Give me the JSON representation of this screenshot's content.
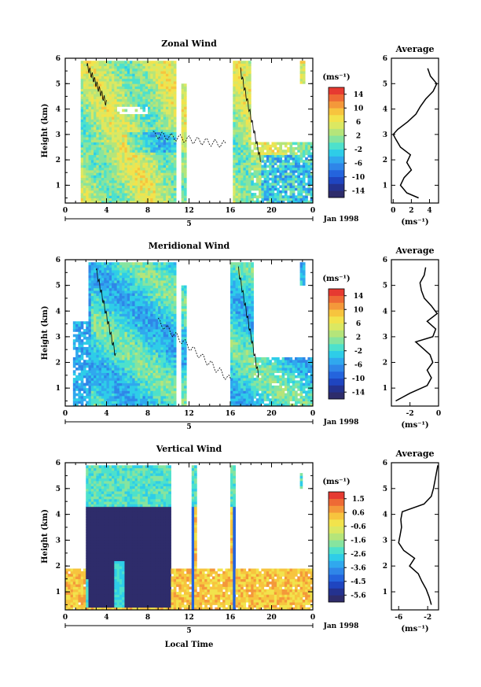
{
  "figure": {
    "xlabel": "Local Time",
    "date_label": "Jan 1998",
    "avg_title": "Average",
    "unit_label": "(ms⁻¹)",
    "avg_xlabel": "(ms⁻¹)"
  },
  "chart_data": [
    {
      "type": "heatmap",
      "title": "Zonal Wind",
      "ylabel": "Height (km)",
      "xticks": [
        "0",
        "4",
        "8",
        "12",
        "16",
        "20",
        "0"
      ],
      "day_label": "5",
      "yticks": [
        "1",
        "2",
        "3",
        "4",
        "5",
        "6"
      ],
      "ylim": [
        0.3,
        6
      ],
      "xlim": [
        0,
        24
      ],
      "colorbar": {
        "unit": "(ms⁻¹)",
        "ticks": [
          "14",
          "10",
          "6",
          "2",
          "-2",
          "-6",
          "-10",
          "-14"
        ],
        "range": [
          -16,
          16
        ]
      },
      "base_value": 2,
      "data_periods": [
        [
          1.5,
          10.8
        ],
        [
          11.3,
          11.8
        ],
        [
          16.2,
          18.0
        ],
        [
          18.0,
          24.0
        ]
      ],
      "average_profile": {
        "title": "Average",
        "xlabel": "(ms⁻¹)",
        "xticks": [
          "0",
          "2",
          "4"
        ],
        "xlim": [
          -0.2,
          5
        ],
        "height": [
          0.5,
          0.7,
          1.0,
          1.3,
          1.6,
          1.9,
          2.2,
          2.5,
          2.8,
          3.0,
          3.2,
          3.5,
          3.8,
          4.1,
          4.4,
          4.7,
          5.0,
          5.3,
          5.6
        ],
        "value": [
          2.8,
          1.5,
          0.8,
          1.2,
          2.0,
          1.5,
          1.9,
          0.8,
          0.3,
          0.0,
          0.5,
          1.6,
          2.5,
          3.0,
          3.6,
          4.4,
          4.8,
          4.1,
          3.8
        ]
      }
    },
    {
      "type": "heatmap",
      "title": "Meridional Wind",
      "ylabel": "Height (km)",
      "xticks": [
        "0",
        "4",
        "8",
        "12",
        "16",
        "20",
        "0"
      ],
      "day_label": "5",
      "yticks": [
        "1",
        "2",
        "3",
        "4",
        "5",
        "6"
      ],
      "ylim": [
        0.3,
        6
      ],
      "xlim": [
        0,
        24
      ],
      "colorbar": {
        "unit": "(ms⁻¹)",
        "ticks": [
          "14",
          "10",
          "6",
          "2",
          "-2",
          "-6",
          "-10",
          "-14"
        ],
        "range": [
          -16,
          16
        ]
      },
      "base_value": -1,
      "data_periods": [
        [
          0.8,
          10.8
        ],
        [
          11.3,
          11.8
        ],
        [
          16.0,
          18.3
        ],
        [
          18.3,
          24.0
        ]
      ],
      "average_profile": {
        "title": "Average",
        "xlabel": "(ms⁻¹)",
        "xticks": [
          "-2",
          "0"
        ],
        "xlim": [
          -3.3,
          0
        ],
        "height": [
          0.5,
          0.8,
          1.1,
          1.4,
          1.7,
          2.0,
          2.3,
          2.6,
          2.8,
          3.0,
          3.3,
          3.6,
          3.9,
          4.2,
          4.5,
          4.8,
          5.1,
          5.4,
          5.7
        ],
        "value": [
          -3.0,
          -2.0,
          -0.8,
          -0.5,
          -0.8,
          -0.4,
          -0.6,
          -1.2,
          -1.6,
          -0.4,
          -0.2,
          -0.8,
          -0.1,
          -0.5,
          -1.0,
          -1.2,
          -1.3,
          -1.0,
          -0.9
        ]
      }
    },
    {
      "type": "heatmap",
      "title": "Vertical Wind",
      "ylabel": "Height (km)",
      "xticks": [
        "0",
        "4",
        "8",
        "12",
        "16",
        "20",
        "0"
      ],
      "day_label": "5",
      "yticks": [
        "1",
        "2",
        "3",
        "4",
        "5",
        "6"
      ],
      "ylim": [
        0.3,
        6
      ],
      "xlim": [
        0,
        24
      ],
      "colorbar": {
        "unit": "(ms⁻¹)",
        "ticks": [
          "1.5",
          "0.6",
          "-0.6",
          "-1.6",
          "-2.6",
          "-3.6",
          "-4.5",
          "-5.6"
        ],
        "range": [
          -6.0,
          2.0
        ]
      },
      "data_periods": [
        [
          2.0,
          10.2
        ],
        [
          12.3,
          12.6
        ],
        [
          16.2,
          16.5
        ],
        [
          0,
          24
        ]
      ],
      "average_profile": {
        "title": "Average",
        "xlabel": "(ms⁻¹)",
        "xticks": [
          "-6",
          "-2"
        ],
        "xlim": [
          -7,
          -0.5
        ],
        "height": [
          0.5,
          0.8,
          1.1,
          1.4,
          1.7,
          2.0,
          2.3,
          2.6,
          2.9,
          3.2,
          3.5,
          3.8,
          4.1,
          4.4,
          4.7,
          5.0,
          5.3,
          5.6,
          5.9
        ],
        "value": [
          -1.5,
          -1.8,
          -2.2,
          -2.8,
          -3.3,
          -4.5,
          -3.8,
          -5.3,
          -6.0,
          -5.8,
          -5.6,
          -5.7,
          -5.5,
          -2.5,
          -1.5,
          -1.2,
          -1.0,
          -0.8,
          -0.6
        ]
      }
    }
  ]
}
